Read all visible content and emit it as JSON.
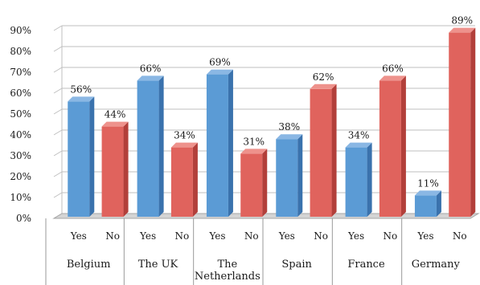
{
  "chart_data": {
    "type": "bar",
    "title": "",
    "xlabel": "",
    "ylabel": "",
    "ylim": [
      0,
      90
    ],
    "y_ticks": [
      "0%",
      "10%",
      "20%",
      "30%",
      "40%",
      "50%",
      "60%",
      "70%",
      "80%",
      "90%"
    ],
    "style": "3d-clustered-columns",
    "groups": [
      {
        "name": "Belgium",
        "lines": [
          "Belgium"
        ]
      },
      {
        "name": "The UK",
        "lines": [
          "The UK"
        ]
      },
      {
        "name": "The Netherlands",
        "lines": [
          "The",
          "Netherlands"
        ]
      },
      {
        "name": "Spain",
        "lines": [
          "Spain"
        ]
      },
      {
        "name": "France",
        "lines": [
          "France"
        ]
      },
      {
        "name": "Germany",
        "lines": [
          "Germany"
        ]
      }
    ],
    "series": [
      {
        "name": "Yes",
        "color": "#5b9bd5",
        "values": [
          56,
          66,
          69,
          38,
          34,
          11
        ],
        "labels": [
          "56%",
          "66%",
          "69%",
          "38%",
          "34%",
          "11%"
        ]
      },
      {
        "name": "No",
        "color": "#e0635d",
        "values": [
          44,
          34,
          31,
          62,
          66,
          89
        ],
        "labels": [
          "44%",
          "34%",
          "31%",
          "62%",
          "66%",
          "89%"
        ]
      }
    ],
    "colors": {
      "yes_front": "#5b9bd5",
      "yes_side": "#3a72ad",
      "yes_top": "#8ab7e4",
      "no_front": "#e0635d",
      "no_side": "#b23f3a",
      "no_top": "#ee928c",
      "grid": "#bfbfbf",
      "floor": "#d4d4d4"
    }
  }
}
